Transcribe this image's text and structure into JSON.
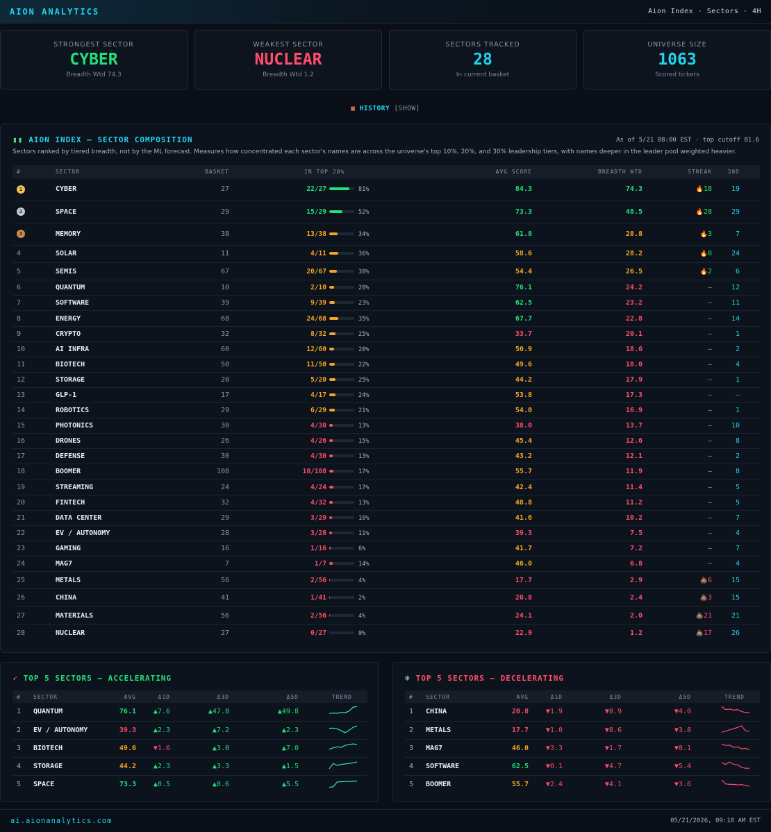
{
  "header": {
    "brand": "AION ANALYTICS",
    "breadcrumb": "Aion Index · Sectors · 4H"
  },
  "cards": [
    {
      "label": "STRONGEST SECTOR",
      "value": "CYBER",
      "sub": "Breadth Wtd 74.3",
      "color": "#22e07a"
    },
    {
      "label": "WEAKEST SECTOR",
      "value": "NUCLEAR",
      "sub": "Breadth Wtd 1.2",
      "color": "#ff4d6a"
    },
    {
      "label": "SECTORS TRACKED",
      "value": "28",
      "sub": "In current basket",
      "color": "#22d3ee"
    },
    {
      "label": "UNIVERSE SIZE",
      "value": "1063",
      "sub": "Scored tickers",
      "color": "#22d3ee"
    }
  ],
  "history": {
    "icon": "calendar-icon",
    "label": "HISTORY",
    "toggle": "[SHOW]"
  },
  "composition": {
    "icon": "bar-chart-icon",
    "title": "AION INDEX — SECTOR COMPOSITION",
    "meta": "As of 5/21 08:00 EST · top cutoff 81.6",
    "description": "Sectors ranked by tiered breadth, not by the ML forecast. Measures how concentrated each sector's names are across the universe's top 10%, 20%, and 30% leadership tiers, with names deeper in the leader pool weighted heavier.",
    "columns": [
      "#",
      "SECTOR",
      "BASKET",
      "IN TOP 20%",
      "AVG SCORE",
      "BREADTH WTD",
      "STREAK",
      "30D"
    ],
    "rows": [
      {
        "rank": "1",
        "medal": "gold",
        "sector": "CYBER",
        "basket": "27",
        "top": "22/27",
        "pct": 81,
        "pct_label": "81%",
        "avg": "84.3",
        "bw": "74.3",
        "streak_icon": "flame-icon",
        "streak": "18",
        "d30": "19"
      },
      {
        "rank": "2",
        "medal": "silver",
        "sector": "SPACE",
        "basket": "29",
        "top": "15/29",
        "pct": 52,
        "pct_label": "52%",
        "avg": "73.3",
        "bw": "48.5",
        "streak_icon": "flame-icon",
        "streak": "28",
        "d30": "29"
      },
      {
        "rank": "3",
        "medal": "bronze",
        "sector": "MEMORY",
        "basket": "38",
        "top": "13/38",
        "pct": 34,
        "pct_label": "34%",
        "avg": "61.8",
        "bw": "28.8",
        "streak_icon": "flame-icon",
        "streak": "3",
        "d30": "7"
      },
      {
        "rank": "4",
        "sector": "SOLAR",
        "basket": "11",
        "top": "4/11",
        "pct": 36,
        "pct_label": "36%",
        "avg": "58.6",
        "bw": "28.2",
        "streak_icon": "flame-icon",
        "streak": "8",
        "d30": "24"
      },
      {
        "rank": "5",
        "sector": "SEMIS",
        "basket": "67",
        "top": "20/67",
        "pct": 30,
        "pct_label": "30%",
        "avg": "54.4",
        "bw": "26.5",
        "streak_icon": "flame-icon",
        "streak": "2",
        "d30": "6"
      },
      {
        "rank": "6",
        "sector": "QUANTUM",
        "basket": "10",
        "top": "2/10",
        "pct": 20,
        "pct_label": "20%",
        "avg": "76.1",
        "bw": "24.2",
        "streak": "—",
        "d30": "12"
      },
      {
        "rank": "7",
        "sector": "SOFTWARE",
        "basket": "39",
        "top": "9/39",
        "pct": 23,
        "pct_label": "23%",
        "avg": "62.5",
        "bw": "23.2",
        "streak": "—",
        "d30": "11"
      },
      {
        "rank": "8",
        "sector": "ENERGY",
        "basket": "68",
        "top": "24/68",
        "pct": 35,
        "pct_label": "35%",
        "avg": "67.7",
        "bw": "22.8",
        "streak": "—",
        "d30": "14"
      },
      {
        "rank": "9",
        "sector": "CRYPTO",
        "basket": "32",
        "top": "8/32",
        "pct": 25,
        "pct_label": "25%",
        "avg": "33.7",
        "bw": "20.1",
        "streak": "—",
        "d30": "1"
      },
      {
        "rank": "10",
        "sector": "AI INFRA",
        "basket": "60",
        "top": "12/60",
        "pct": 20,
        "pct_label": "20%",
        "avg": "50.9",
        "bw": "18.6",
        "streak": "—",
        "d30": "2"
      },
      {
        "rank": "11",
        "sector": "BIOTECH",
        "basket": "50",
        "top": "11/50",
        "pct": 22,
        "pct_label": "22%",
        "avg": "49.6",
        "bw": "18.0",
        "streak": "—",
        "d30": "4"
      },
      {
        "rank": "12",
        "sector": "STORAGE",
        "basket": "20",
        "top": "5/20",
        "pct": 25,
        "pct_label": "25%",
        "avg": "44.2",
        "bw": "17.9",
        "streak": "—",
        "d30": "1"
      },
      {
        "rank": "13",
        "sector": "GLP-1",
        "basket": "17",
        "top": "4/17",
        "pct": 24,
        "pct_label": "24%",
        "avg": "53.8",
        "bw": "17.3",
        "streak": "—",
        "d30": "—"
      },
      {
        "rank": "14",
        "sector": "ROBOTICS",
        "basket": "29",
        "top": "6/29",
        "pct": 21,
        "pct_label": "21%",
        "avg": "54.0",
        "bw": "16.9",
        "streak": "—",
        "d30": "1"
      },
      {
        "rank": "15",
        "sector": "PHOTONICS",
        "basket": "30",
        "top": "4/30",
        "pct": 13,
        "pct_label": "13%",
        "avg": "38.0",
        "bw": "13.7",
        "streak": "—",
        "d30": "10"
      },
      {
        "rank": "16",
        "sector": "DRONES",
        "basket": "26",
        "top": "4/26",
        "pct": 15,
        "pct_label": "15%",
        "avg": "45.4",
        "bw": "12.6",
        "streak": "—",
        "d30": "8"
      },
      {
        "rank": "17",
        "sector": "DEFENSE",
        "basket": "30",
        "top": "4/30",
        "pct": 13,
        "pct_label": "13%",
        "avg": "43.2",
        "bw": "12.1",
        "streak": "—",
        "d30": "2"
      },
      {
        "rank": "18",
        "sector": "BOOMER",
        "basket": "108",
        "top": "18/108",
        "pct": 17,
        "pct_label": "17%",
        "avg": "55.7",
        "bw": "11.9",
        "streak": "—",
        "d30": "8"
      },
      {
        "rank": "19",
        "sector": "STREAMING",
        "basket": "24",
        "top": "4/24",
        "pct": 17,
        "pct_label": "17%",
        "avg": "42.4",
        "bw": "11.4",
        "streak": "—",
        "d30": "5"
      },
      {
        "rank": "20",
        "sector": "FINTECH",
        "basket": "32",
        "top": "4/32",
        "pct": 13,
        "pct_label": "13%",
        "avg": "48.8",
        "bw": "11.2",
        "streak": "—",
        "d30": "5"
      },
      {
        "rank": "21",
        "sector": "DATA CENTER",
        "basket": "29",
        "top": "3/29",
        "pct": 10,
        "pct_label": "10%",
        "avg": "41.6",
        "bw": "10.2",
        "streak": "—",
        "d30": "7"
      },
      {
        "rank": "22",
        "sector": "EV / AUTONOMY",
        "basket": "28",
        "top": "3/28",
        "pct": 11,
        "pct_label": "11%",
        "avg": "39.3",
        "bw": "7.5",
        "streak": "—",
        "d30": "4"
      },
      {
        "rank": "23",
        "sector": "GAMING",
        "basket": "16",
        "top": "1/16",
        "pct": 6,
        "pct_label": "6%",
        "avg": "41.7",
        "bw": "7.2",
        "streak": "—",
        "d30": "7"
      },
      {
        "rank": "24",
        "sector": "MAG7",
        "basket": "7",
        "top": "1/7",
        "pct": 14,
        "pct_label": "14%",
        "avg": "46.0",
        "bw": "6.8",
        "streak": "—",
        "d30": "4"
      },
      {
        "rank": "25",
        "sector": "METALS",
        "basket": "56",
        "top": "2/56",
        "pct": 4,
        "pct_label": "4%",
        "avg": "17.7",
        "bw": "2.9",
        "streak_icon": "poop-icon",
        "streak": "6",
        "d30": "15"
      },
      {
        "rank": "26",
        "sector": "CHINA",
        "basket": "41",
        "top": "1/41",
        "pct": 2,
        "pct_label": "2%",
        "avg": "20.8",
        "bw": "2.4",
        "streak_icon": "poop-icon",
        "streak": "3",
        "d30": "15"
      },
      {
        "rank": "27",
        "sector": "MATERIALS",
        "basket": "56",
        "top": "2/56",
        "pct": 4,
        "pct_label": "4%",
        "avg": "24.1",
        "bw": "2.0",
        "streak_icon": "poop-icon",
        "streak": "21",
        "d30": "21"
      },
      {
        "rank": "28",
        "sector": "NUCLEAR",
        "basket": "27",
        "top": "0/27",
        "pct": 0,
        "pct_label": "0%",
        "avg": "22.9",
        "bw": "1.2",
        "streak_icon": "poop-icon",
        "streak": "17",
        "d30": "26"
      }
    ]
  },
  "accelerating": {
    "icon": "rocket-icon",
    "title": "TOP 5 SECTORS — ACCELERATING",
    "columns": [
      "#",
      "SECTOR",
      "AVG",
      "Δ1D",
      "Δ3D",
      "Δ5D",
      "TREND"
    ],
    "rows": [
      {
        "rank": "1",
        "sector": "QUANTUM",
        "avg": "76.1",
        "d1": "▲7.6",
        "d3": "▲47.8",
        "d5": "▲49.8",
        "trend": [
          0.2,
          0.25,
          0.22,
          0.3,
          0.28,
          0.45,
          0.85,
          0.9
        ],
        "d1_dir": "up",
        "d3_dir": "up",
        "d5_dir": "up"
      },
      {
        "rank": "2",
        "sector": "EV / AUTONOMY",
        "avg": "39.3",
        "d1": "▲2.3",
        "d3": "▲7.2",
        "d5": "▲2.3",
        "trend": [
          0.6,
          0.62,
          0.55,
          0.35,
          0.15,
          0.4,
          0.7,
          0.85
        ],
        "d1_dir": "up",
        "d3_dir": "up",
        "d5_dir": "up"
      },
      {
        "rank": "3",
        "sector": "BIOTECH",
        "avg": "49.6",
        "d1": "▼1.6",
        "d3": "▲3.0",
        "d5": "▲7.0",
        "trend": [
          0.3,
          0.45,
          0.55,
          0.5,
          0.7,
          0.8,
          0.85,
          0.8
        ],
        "d1_dir": "down",
        "d3_dir": "up",
        "d5_dir": "up"
      },
      {
        "rank": "4",
        "sector": "STORAGE",
        "avg": "44.2",
        "d1": "▲2.3",
        "d3": "▲3.3",
        "d5": "▲1.5",
        "trend": [
          0.15,
          0.7,
          0.5,
          0.6,
          0.65,
          0.7,
          0.75,
          0.85
        ],
        "d1_dir": "up",
        "d3_dir": "up",
        "d5_dir": "up"
      },
      {
        "rank": "5",
        "sector": "SPACE",
        "avg": "73.3",
        "d1": "▲0.5",
        "d3": "▲0.6",
        "d5": "▲5.5",
        "trend": [
          0.1,
          0.15,
          0.65,
          0.68,
          0.7,
          0.7,
          0.72,
          0.75
        ],
        "d1_dir": "up",
        "d3_dir": "up",
        "d5_dir": "up"
      }
    ]
  },
  "decelerating": {
    "icon": "snowflake-icon",
    "title": "TOP 5 SECTORS — DECELERATING",
    "columns": [
      "#",
      "SECTOR",
      "AVG",
      "Δ1D",
      "Δ3D",
      "Δ5D",
      "TREND"
    ],
    "rows": [
      {
        "rank": "1",
        "sector": "CHINA",
        "avg": "20.8",
        "d1": "▼1.9",
        "d3": "▼8.9",
        "d5": "▼4.0",
        "trend": [
          0.9,
          0.6,
          0.65,
          0.55,
          0.6,
          0.4,
          0.3,
          0.3
        ],
        "d1_dir": "down",
        "d3_dir": "down",
        "d5_dir": "down"
      },
      {
        "rank": "2",
        "sector": "METALS",
        "avg": "17.7",
        "d1": "▼1.0",
        "d3": "▼8.6",
        "d5": "▼3.8",
        "trend": [
          0.2,
          0.3,
          0.45,
          0.55,
          0.7,
          0.85,
          0.35,
          0.3
        ],
        "d1_dir": "down",
        "d3_dir": "down",
        "d5_dir": "down"
      },
      {
        "rank": "3",
        "sector": "MAG7",
        "avg": "46.0",
        "d1": "▼3.3",
        "d3": "▼1.7",
        "d5": "▼8.1",
        "trend": [
          0.85,
          0.7,
          0.72,
          0.5,
          0.55,
          0.35,
          0.4,
          0.25
        ],
        "d1_dir": "down",
        "d3_dir": "down",
        "d5_dir": "down"
      },
      {
        "rank": "4",
        "sector": "SOFTWARE",
        "avg": "62.5",
        "d1": "▼0.1",
        "d3": "▼4.7",
        "d5": "▼5.4",
        "trend": [
          0.8,
          0.6,
          0.85,
          0.6,
          0.55,
          0.3,
          0.2,
          0.2
        ],
        "d1_dir": "down",
        "d3_dir": "down",
        "d5_dir": "down"
      },
      {
        "rank": "5",
        "sector": "BOOMER",
        "avg": "55.7",
        "d1": "▼2.4",
        "d3": "▼4.1",
        "d5": "▼3.6",
        "trend": [
          0.85,
          0.45,
          0.4,
          0.4,
          0.35,
          0.38,
          0.3,
          0.2
        ],
        "d1_dir": "down",
        "d3_dir": "down",
        "d5_dir": "down"
      }
    ]
  },
  "footer": {
    "url": "ai.aionanalytics.com",
    "timestamp": "05/21/2026, 09:18 AM EST"
  },
  "colors": {
    "green": "#22e07a",
    "amber": "#f5a524",
    "red": "#ff4d6a",
    "cyan": "#22d3ee"
  }
}
